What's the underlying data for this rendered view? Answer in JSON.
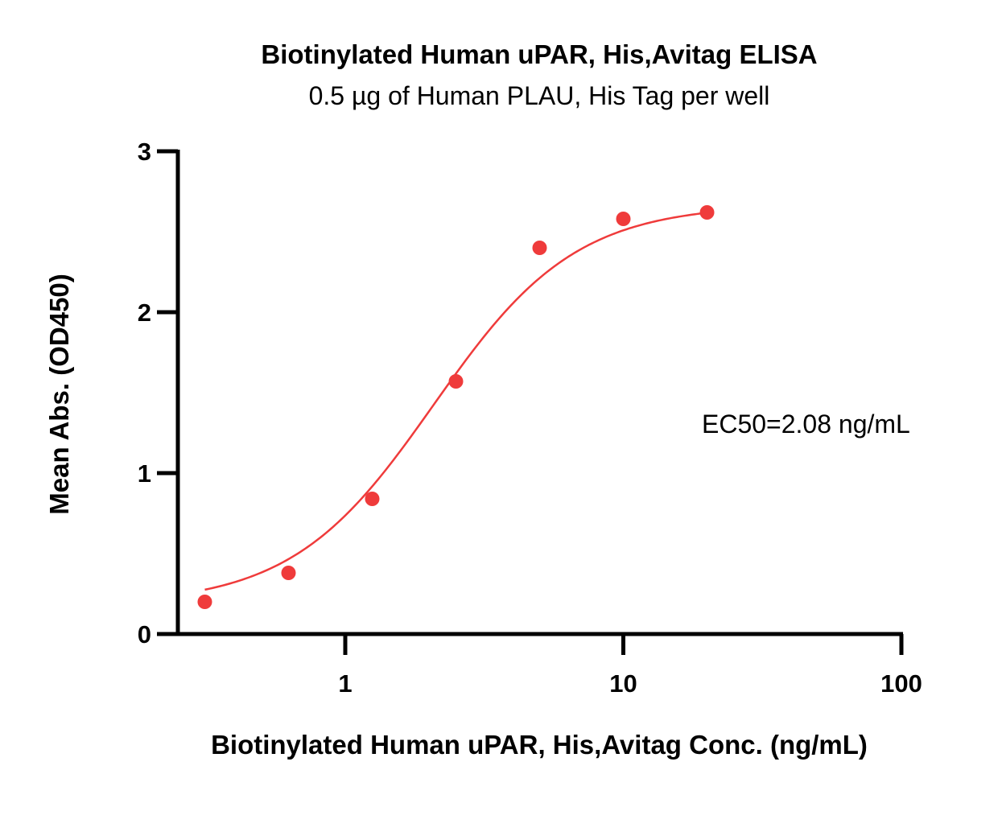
{
  "chart_data": {
    "type": "scatter",
    "title": "Biotinylated Human uPAR, His,Avitag ELISA",
    "subtitle": "0.5 µg of Human PLAU, His Tag per well",
    "xlabel": "Biotinylated Human uPAR, His,Avitag Conc. (ng/mL)",
    "ylabel": "Mean Abs. (OD450)",
    "x_scale": "log",
    "xlim": [
      0.25,
      100
    ],
    "ylim": [
      0,
      3
    ],
    "x_ticks": [
      1,
      10,
      100
    ],
    "x_tick_labels": [
      "1",
      "10",
      "100"
    ],
    "y_ticks": [
      0,
      1,
      2,
      3
    ],
    "y_tick_labels": [
      "0",
      "1",
      "2",
      "3"
    ],
    "grid": false,
    "colors": {
      "series": "#ef3b3b",
      "axis": "#000000"
    },
    "series": [
      {
        "x": [
          0.3125,
          0.625,
          1.25,
          2.5,
          5,
          10,
          20
        ],
        "y": [
          0.2,
          0.38,
          0.84,
          1.57,
          2.4,
          2.58,
          2.62
        ]
      }
    ],
    "fit": {
      "model": "4PL",
      "bottom": 0.18,
      "top": 2.67,
      "ec50": 2.08,
      "hill": 1.7,
      "x_range": [
        0.3125,
        20
      ]
    },
    "annotation": "EC50=2.08 ng/mL"
  }
}
